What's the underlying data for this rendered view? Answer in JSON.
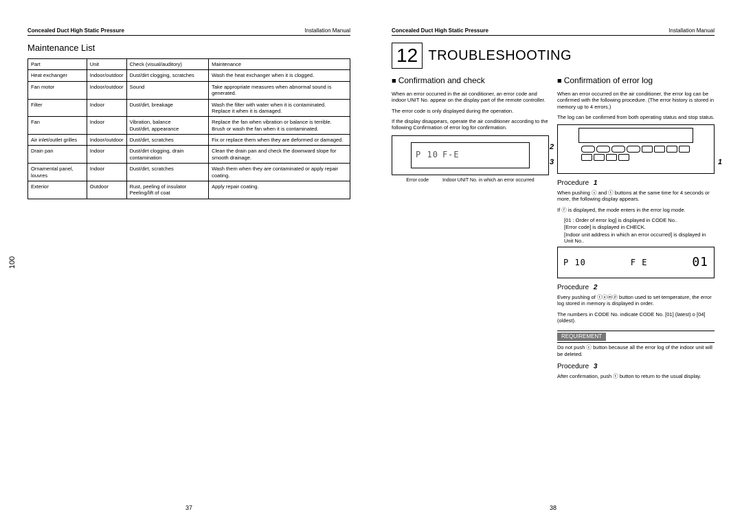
{
  "spine_page": "100",
  "left": {
    "header_left": "Concealed Duct High Static Pressure",
    "header_right": "Installation Manual",
    "section_title": "Maintenance List",
    "footer": "37",
    "table": {
      "headers": [
        "Part",
        "Unit",
        "Check (visual/auditory)",
        "Maintenance"
      ],
      "rows": [
        [
          "Heat exchanger",
          "Indoor/outdoor",
          "Dust/dirt clogging, scratches",
          "Wash the heat exchanger when it is clogged."
        ],
        [
          "Fan motor",
          "Indoor/outdoor",
          "Sound",
          "Take appropriate measures when abnormal sound is generated."
        ],
        [
          "Filter",
          "Indoor",
          "Dust/dirt, breakage",
          "Wash the filter with water when it is contaminated.\nReplace it when it is damaged."
        ],
        [
          "Fan",
          "Indoor",
          "Vibration, balance\nDust/dirt, appearance",
          "Replace the fan when vibration or balance is terrible.\nBrush or wash the fan when it is contaminated."
        ],
        [
          "Air inlet/outlet grilles",
          "Indoor/outdoor",
          "Dust/dirt, scratches",
          "Fix or replace them when they are deformed or damaged."
        ],
        [
          "Drain pan",
          "Indoor",
          "Dust/dirt clogging, drain contamination",
          "Clean the drain pan and check the downward slope for smooth drainage."
        ],
        [
          "Ornamental panel, louvres",
          "Indoor",
          "Dust/dirt, scratches",
          "Wash them when they are contaminated or apply repair coating."
        ],
        [
          "Exterior",
          "Outdoor",
          "Rust, peeling of insulator\nPeeling/lift of coat",
          "Apply repair coating."
        ]
      ]
    }
  },
  "right": {
    "header_left": "Concealed Duct High Static Pressure",
    "header_right": "Installation Manual",
    "chapter_num": "12",
    "chapter_title": "TROUBLESHOOTING",
    "footer": "38",
    "colA": {
      "heading": "Confirmation and check",
      "p1": "When an error occurred in the air conditioner, an error code and indoor UNIT No. appear on the display part of the remote controller.",
      "p2": "The error code is only displayed during the operation.",
      "p3": "If the display disappears, operate the air conditioner according to the following  Confirmation of error log  for confirmation.",
      "lcd_code": "P 10",
      "lcd_unit": "F-E",
      "caption_l": "Error code",
      "caption_r": "Indoor UNIT No. in which an error occurred"
    },
    "colB": {
      "heading": "Confirmation of error log",
      "p1": "When an error occurred on the air conditioner, the error log can be confirmed with the following procedure. (The error history is stored in memory up to 4 errors.)",
      "p2": "The log can be confirmed from both operating status and stop status.",
      "callout_2": "2",
      "callout_3": "3",
      "callout_1": "1",
      "proc1_h": "Procedure",
      "proc1_n": "1",
      "proc1_t1": "When pushing ⓢ and ⓣ buttons at the same time for 4 seconds or more, the following display appears.",
      "proc1_t2": "If ⓕ is displayed, the mode enters in the error log mode.",
      "proc1_li1": "[01 : Order of error log] is displayed in CODE No..",
      "proc1_li2": "[Error code] is displayed in CHECK.",
      "proc1_li3": "[Indoor unit address in which an error occurred] is displayed in Unit No..",
      "lcd2_a": "P 10",
      "lcd2_b": "F  E",
      "lcd2_c": "01",
      "proc2_h": "Procedure",
      "proc2_n": "2",
      "proc2_t1": "Every pushing of ⓣⓔⓜⓟ button used to set temperature, the error log stored in memory is displayed in order.",
      "proc2_t2": "The numbers in CODE No. indicate CODE No. [01] (latest) o [04] (oldest).",
      "req_label": "REQUIREMENT",
      "req_text": "Do not push ⓒ button because all the error log of the indoor unit will be deleted.",
      "proc3_h": "Procedure",
      "proc3_n": "3",
      "proc3_t": "After confirmation, push ⓣ button to return to the usual display."
    }
  }
}
